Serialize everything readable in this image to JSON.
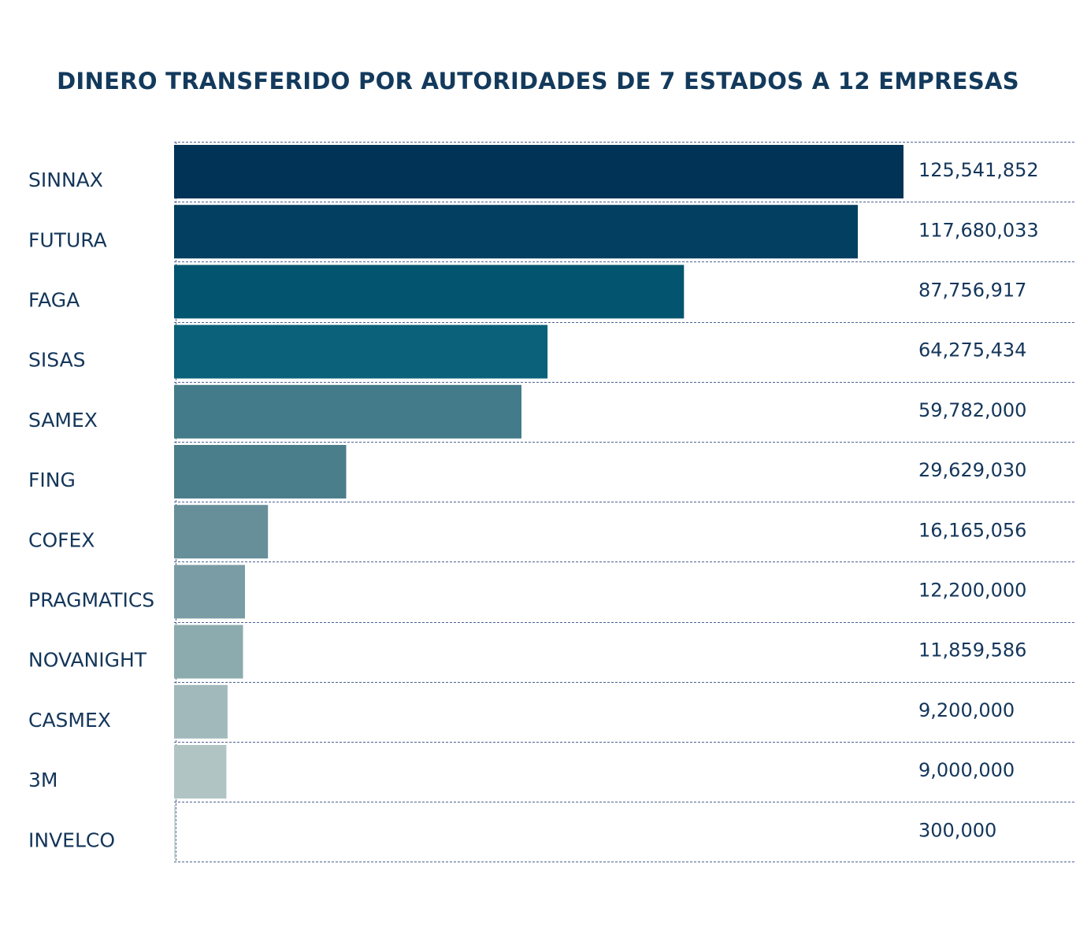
{
  "chart_data": {
    "type": "bar",
    "orientation": "horizontal",
    "title": "DINERO TRANSFERIDO POR AUTORIDADES DE 7 ESTADOS A 12 EMPRESAS",
    "xlabel": "",
    "ylabel": "",
    "grid": true,
    "legend": "none",
    "categories": [
      "SINNAX",
      "FUTURA",
      "FAGA",
      "SISAS",
      "SAMEX",
      "FING",
      "COFEX",
      "PRAGMATICS",
      "NOVANIGHT",
      "CASMEX",
      "3M",
      "INVELCO"
    ],
    "values": [
      125541852,
      117680033,
      87756917,
      64275434,
      59782000,
      29629030,
      16165056,
      12200000,
      11859586,
      9200000,
      9000000,
      300000
    ],
    "value_labels": [
      "125,541,852",
      "117,680,033",
      "87,756,917",
      "64,275,434",
      "59,782,000",
      "29,629,030",
      "16,165,056",
      "12,200,000",
      "11,859,586",
      "9,200,000",
      "9,000,000",
      "300,000"
    ],
    "colors": [
      "#013356",
      "#023f61",
      "#03546e",
      "#0b6179",
      "#447b8a",
      "#4b7e8b",
      "#668f99",
      "#7a9ca4",
      "#8cabae",
      "#a1b9ba",
      "#b0c4c3",
      "#ccd8da"
    ],
    "xlim": [
      0,
      125541852
    ]
  }
}
